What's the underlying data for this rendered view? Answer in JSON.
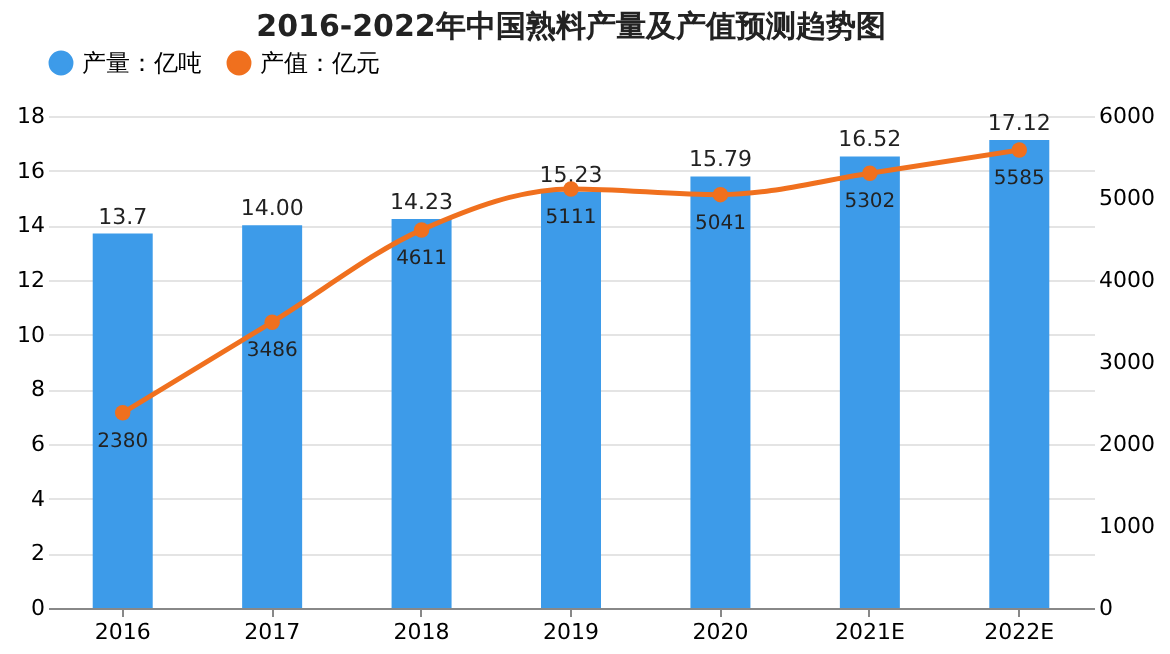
{
  "chart_data": {
    "type": "bar",
    "title": "2016-2022年中国熟料产量及产值预测趋势图",
    "categories": [
      "2016",
      "2017",
      "2018",
      "2019",
      "2020",
      "2021E",
      "2022E"
    ],
    "series": [
      {
        "name": "产量：亿吨",
        "color": "#3d9be9",
        "values": [
          13.7,
          14.0,
          14.23,
          15.23,
          15.79,
          16.52,
          17.12
        ],
        "value_labels": [
          "13.7",
          "14.00",
          "14.23",
          "15.23",
          "15.79",
          "16.52",
          "17.12"
        ]
      },
      {
        "name": "产值：亿元",
        "type": "line",
        "axis": "y2",
        "color": "#f0701e",
        "values": [
          2380,
          3486,
          4611,
          5111,
          5041,
          5302,
          5585
        ],
        "value_labels": [
          "2380",
          "3486",
          "4611",
          "5111",
          "5041",
          "5302",
          "5585"
        ]
      }
    ],
    "ylim": [
      0,
      18
    ],
    "yticks": [
      0,
      2,
      4,
      6,
      8,
      10,
      12,
      14,
      16,
      18
    ],
    "y2lim": [
      0,
      6000
    ],
    "y2ticks": [
      0,
      1000,
      2000,
      3000,
      4000,
      5000,
      6000
    ],
    "grid": "y",
    "legend": "top",
    "marker": "circle",
    "line_style": "solid"
  }
}
